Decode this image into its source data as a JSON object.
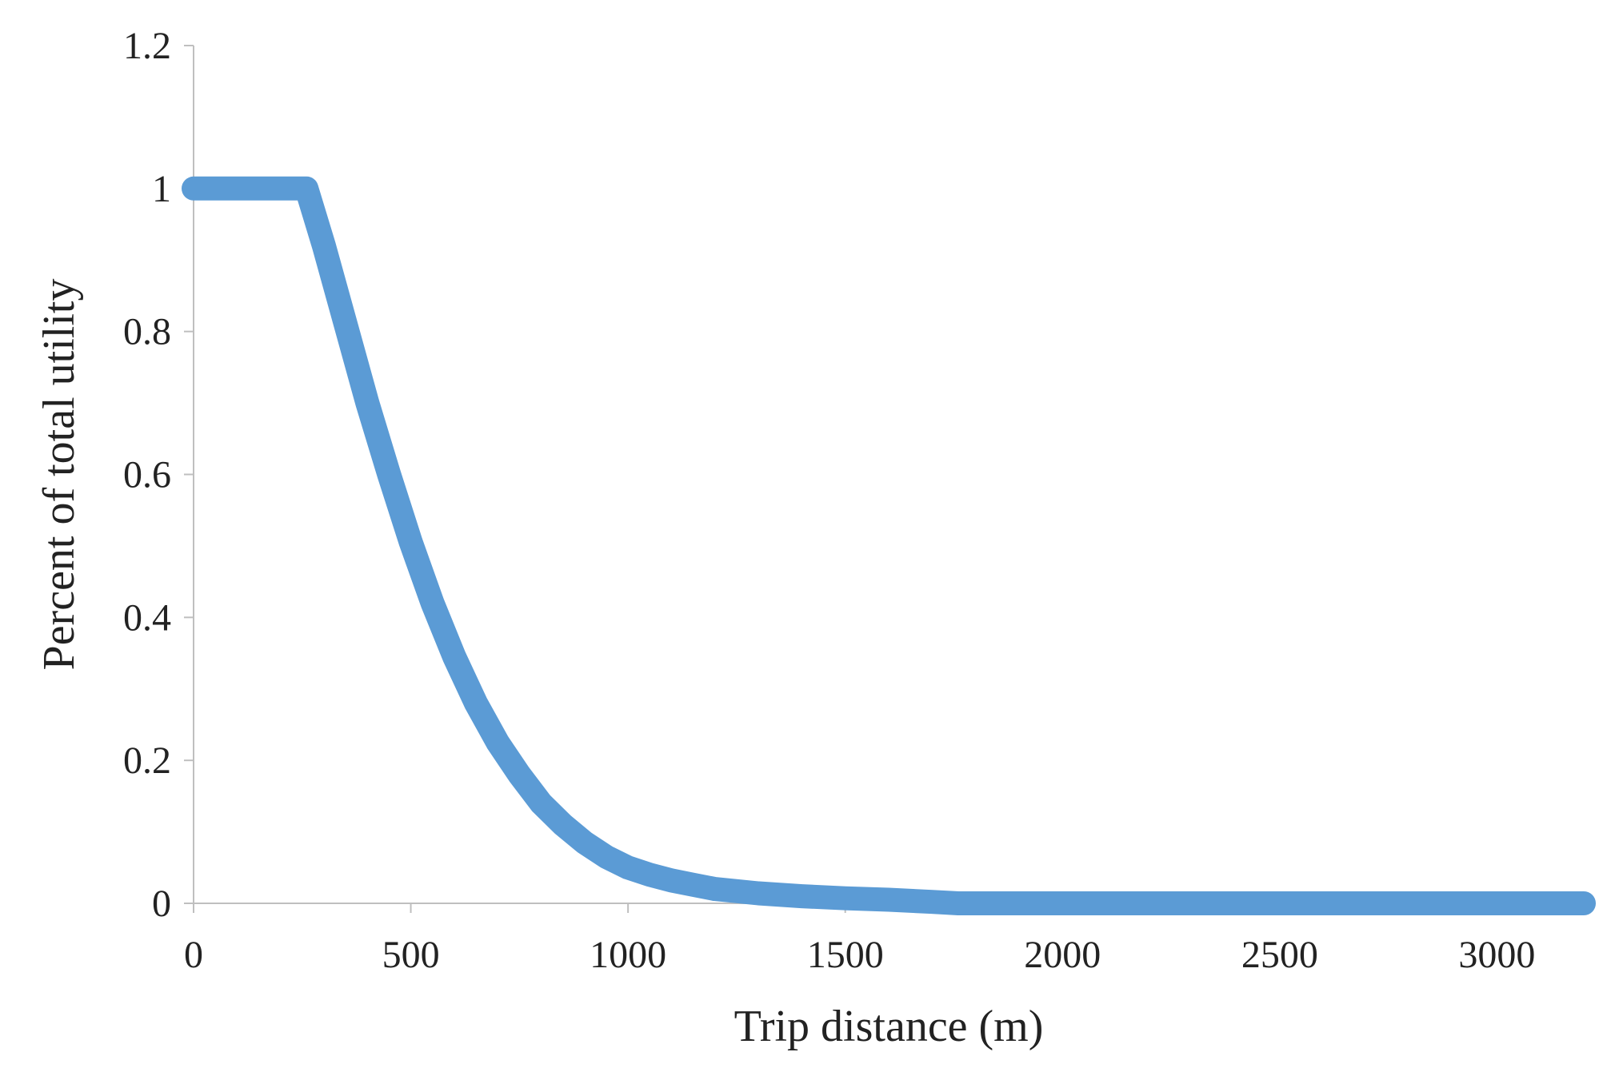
{
  "chart_data": {
    "type": "line",
    "title": "",
    "xlabel": "Trip distance (m)",
    "ylabel": "Percent of total utility",
    "xlim": [
      0,
      3200
    ],
    "ylim": [
      0,
      1.2
    ],
    "x_ticks": [
      {
        "value": 0,
        "label": "0"
      },
      {
        "value": 500,
        "label": "500"
      },
      {
        "value": 1000,
        "label": "1000"
      },
      {
        "value": 1500,
        "label": "1500"
      },
      {
        "value": 2000,
        "label": "2000"
      },
      {
        "value": 2500,
        "label": "2500"
      },
      {
        "value": 3000,
        "label": "3000"
      }
    ],
    "y_ticks": [
      {
        "value": 0,
        "label": "0"
      },
      {
        "value": 0.2,
        "label": "0.2"
      },
      {
        "value": 0.4,
        "label": "0.4"
      },
      {
        "value": 0.6,
        "label": "0.6"
      },
      {
        "value": 0.8,
        "label": "0.8"
      },
      {
        "value": 1,
        "label": "1"
      },
      {
        "value": 1.2,
        "label": "1.2"
      }
    ],
    "grid": false,
    "legend": "none",
    "line_color": "#5B9BD5",
    "axis_color": "#BFBFBF",
    "series": [
      {
        "x": [
          0,
          100,
          200,
          260,
          300,
          350,
          400,
          450,
          500,
          550,
          600,
          650,
          700,
          750,
          800,
          850,
          900,
          950,
          1000,
          1050,
          1100,
          1150,
          1200,
          1300,
          1400,
          1500,
          1600,
          1700,
          1760,
          2000,
          2500,
          3000,
          3200
        ],
        "y": [
          1,
          1,
          1,
          1,
          0.92,
          0.81,
          0.7,
          0.6,
          0.505,
          0.42,
          0.345,
          0.28,
          0.225,
          0.18,
          0.14,
          0.11,
          0.085,
          0.065,
          0.05,
          0.04,
          0.032,
          0.026,
          0.02,
          0.014,
          0.01,
          0.007,
          0.005,
          0.002,
          0,
          0,
          0,
          0,
          0
        ]
      }
    ]
  }
}
